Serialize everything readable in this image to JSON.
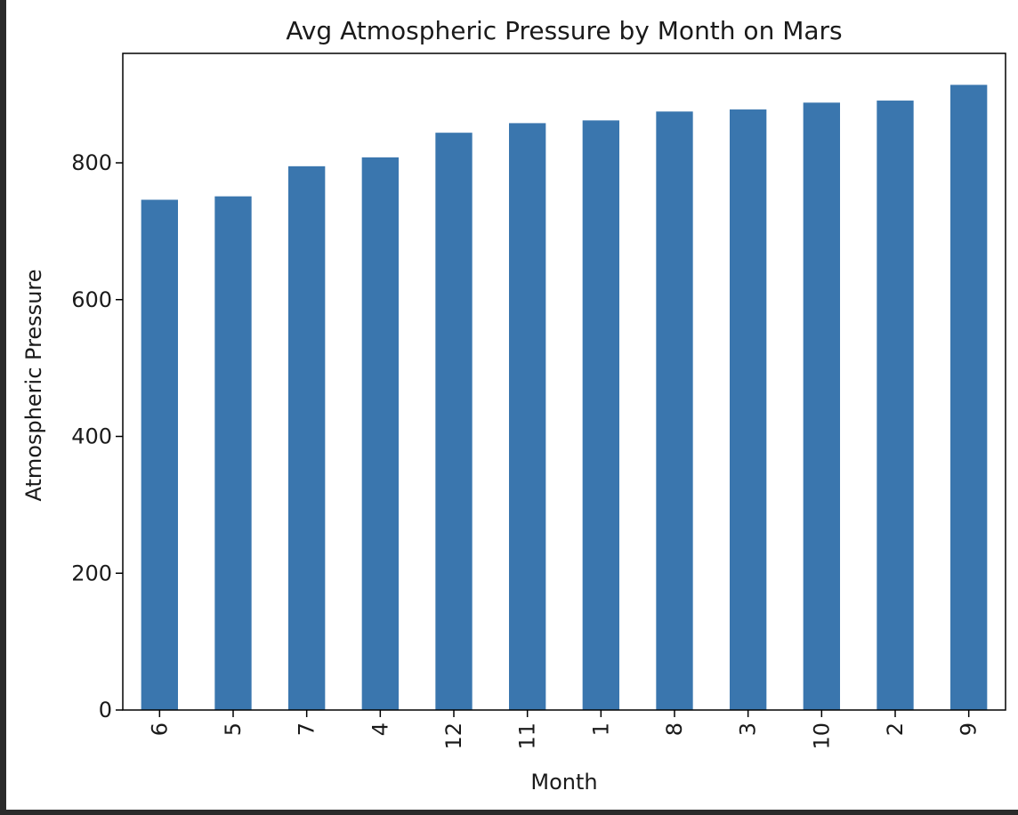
{
  "colors": {
    "bar": "#3a76ae",
    "axis": "#000000",
    "background": "#ffffff",
    "frame": "#2b2b2b"
  },
  "chart_data": {
    "type": "bar",
    "title": "Avg Atmospheric Pressure by Month on Mars",
    "xlabel": "Month",
    "ylabel": "Atmospheric Pressure",
    "categories": [
      "6",
      "5",
      "7",
      "4",
      "12",
      "11",
      "1",
      "8",
      "3",
      "10",
      "2",
      "9"
    ],
    "values": [
      746,
      751,
      795,
      808,
      844,
      858,
      862,
      875,
      878,
      888,
      891,
      914
    ],
    "ylim": [
      0,
      960
    ],
    "yticks": [
      0,
      200,
      400,
      600,
      800
    ],
    "grid": false,
    "legend": "none"
  }
}
